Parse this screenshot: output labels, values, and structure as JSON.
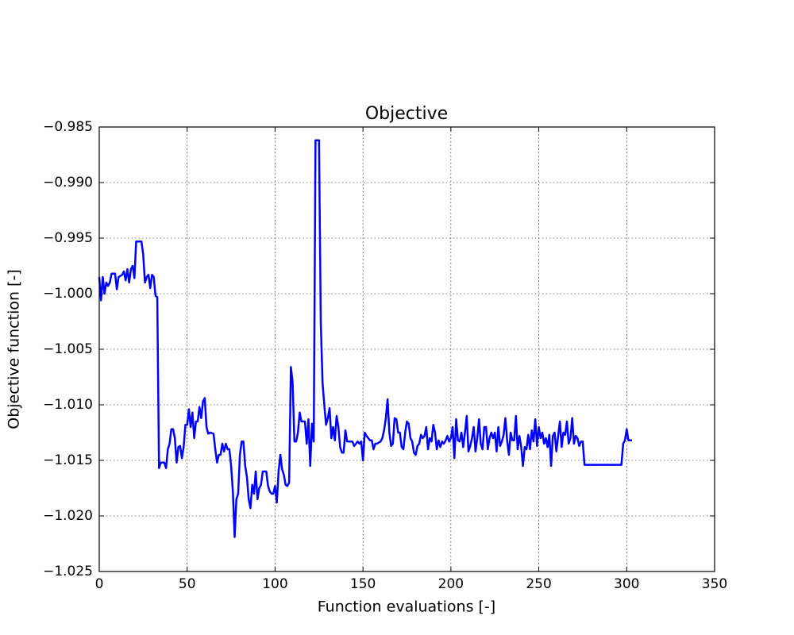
{
  "chart_data": {
    "type": "line",
    "title": "Objective",
    "x_label": "Function evaluations [-]",
    "y_label": "Objective function [-]",
    "xlim": [
      0,
      350
    ],
    "xticks": [
      0,
      50,
      100,
      150,
      200,
      250,
      300,
      350
    ],
    "ylim": [
      -1.025,
      -0.985
    ],
    "yticks": [
      {
        "value": -1.025,
        "label": "−1.025"
      },
      {
        "value": -1.02,
        "label": "−1.020"
      },
      {
        "value": -1.015,
        "label": "−1.015"
      },
      {
        "value": -1.01,
        "label": "−1.010"
      },
      {
        "value": -1.005,
        "label": "−1.005"
      },
      {
        "value": -1.0,
        "label": "−1.000"
      },
      {
        "value": -0.995,
        "label": "−0.995"
      },
      {
        "value": -0.99,
        "label": "−0.990"
      },
      {
        "value": -0.985,
        "label": "−0.985"
      }
    ],
    "grid": true,
    "series": [
      {
        "color": "#0000ff",
        "x": [
          0,
          1,
          2,
          3,
          4,
          5,
          6,
          7,
          9,
          10,
          11,
          13,
          14,
          15,
          16,
          17,
          18,
          19,
          20,
          21,
          24,
          25,
          26,
          27,
          28,
          29,
          30,
          31,
          32,
          33,
          34,
          35,
          37,
          38,
          39,
          40,
          41,
          42,
          43,
          44,
          45,
          46,
          47,
          48,
          49,
          50,
          51,
          52,
          53,
          54,
          55,
          56,
          57,
          58,
          59,
          60,
          61,
          62,
          63,
          65,
          66,
          67,
          68,
          69,
          70,
          71,
          72,
          73,
          74,
          75,
          76,
          77,
          78,
          79,
          80,
          81,
          82,
          83,
          84,
          85,
          86,
          87,
          88,
          89,
          90,
          91,
          92,
          93,
          95,
          96,
          97,
          98,
          99,
          100,
          101,
          102,
          103,
          104,
          105,
          106,
          107,
          108,
          109,
          110,
          111,
          112,
          113,
          114,
          115,
          116,
          117,
          118,
          119,
          120,
          121,
          122,
          123,
          125,
          126,
          127,
          128,
          129,
          130,
          131,
          132,
          133,
          134,
          135,
          136,
          137,
          138,
          139,
          140,
          141,
          142,
          144,
          145,
          146,
          147,
          148,
          149,
          150,
          151,
          152,
          153,
          154,
          155,
          156,
          157,
          158,
          160,
          161,
          162,
          163,
          164,
          165,
          166,
          167,
          168,
          169,
          170,
          171,
          172,
          173,
          174,
          175,
          176,
          177,
          178,
          179,
          180,
          181,
          182,
          183,
          184,
          185,
          186,
          187,
          188,
          189,
          190,
          191,
          192,
          193,
          194,
          195,
          196,
          197,
          198,
          199,
          200,
          201,
          202,
          203,
          204,
          205,
          206,
          207,
          208,
          209,
          210,
          211,
          212,
          213,
          214,
          215,
          216,
          217,
          218,
          219,
          220,
          221,
          222,
          223,
          224,
          225,
          226,
          227,
          228,
          229,
          230,
          231,
          232,
          233,
          234,
          235,
          236,
          237,
          238,
          239,
          240,
          241,
          242,
          243,
          244,
          245,
          246,
          247,
          248,
          249,
          250,
          251,
          252,
          253,
          254,
          255,
          256,
          257,
          258,
          259,
          260,
          261,
          262,
          263,
          264,
          265,
          266,
          267,
          268,
          269,
          270,
          271,
          272,
          273,
          274,
          275,
          276,
          297,
          298,
          299,
          300,
          301,
          303
        ],
        "values": [
          -0.9985,
          -1.0006,
          -0.9985,
          -1.0,
          -0.999,
          -0.9993,
          -0.999,
          -0.9982,
          -0.9982,
          -0.9996,
          -0.9985,
          -0.9983,
          -0.998,
          -0.9988,
          -0.9978,
          -0.999,
          -0.9978,
          -0.9975,
          -0.9986,
          -0.9953,
          -0.9953,
          -0.9965,
          -0.999,
          -0.9985,
          -0.9983,
          -0.9995,
          -0.9983,
          -0.9985,
          -1.0002,
          -1.0003,
          -1.0157,
          -1.0152,
          -1.0152,
          -1.0157,
          -1.014,
          -1.0135,
          -1.0122,
          -1.0122,
          -1.013,
          -1.0152,
          -1.0138,
          -1.0137,
          -1.0148,
          -1.0138,
          -1.0118,
          -1.0118,
          -1.0104,
          -1.012,
          -1.0107,
          -1.013,
          -1.0115,
          -1.0115,
          -1.0102,
          -1.0112,
          -1.0097,
          -1.0094,
          -1.012,
          -1.0126,
          -1.0125,
          -1.0126,
          -1.014,
          -1.0152,
          -1.0145,
          -1.0145,
          -1.0135,
          -1.0142,
          -1.0135,
          -1.014,
          -1.014,
          -1.0155,
          -1.0178,
          -1.0219,
          -1.0185,
          -1.018,
          -1.0145,
          -1.0133,
          -1.0133,
          -1.0155,
          -1.0165,
          -1.0185,
          -1.0193,
          -1.0172,
          -1.018,
          -1.016,
          -1.0185,
          -1.0175,
          -1.0172,
          -1.016,
          -1.016,
          -1.0173,
          -1.0178,
          -1.018,
          -1.018,
          -1.0173,
          -1.0188,
          -1.016,
          -1.0145,
          -1.0158,
          -1.0163,
          -1.0172,
          -1.0173,
          -1.017,
          -1.0066,
          -1.008,
          -1.0133,
          -1.0133,
          -1.0125,
          -1.0107,
          -1.0115,
          -1.0115,
          -1.0115,
          -1.0135,
          -1.0113,
          -1.0155,
          -1.0117,
          -1.0133,
          -0.9862,
          -0.9862,
          -1.0025,
          -1.008,
          -1.01,
          -1.0118,
          -1.0112,
          -1.0103,
          -1.013,
          -1.012,
          -1.0132,
          -1.011,
          -1.012,
          -1.0138,
          -1.0143,
          -1.0143,
          -1.0123,
          -1.0133,
          -1.0133,
          -1.0133,
          -1.0137,
          -1.0135,
          -1.0133,
          -1.0135,
          -1.0133,
          -1.015,
          -1.0125,
          -1.0128,
          -1.013,
          -1.0132,
          -1.0132,
          -1.014,
          -1.0135,
          -1.0135,
          -1.0133,
          -1.013,
          -1.0123,
          -1.0112,
          -1.0095,
          -1.0125,
          -1.0137,
          -1.0135,
          -1.0112,
          -1.0113,
          -1.0125,
          -1.0125,
          -1.0138,
          -1.014,
          -1.0125,
          -1.0115,
          -1.0117,
          -1.013,
          -1.0133,
          -1.0143,
          -1.0145,
          -1.0137,
          -1.0135,
          -1.0127,
          -1.013,
          -1.0128,
          -1.012,
          -1.014,
          -1.013,
          -1.0133,
          -1.0118,
          -1.0125,
          -1.014,
          -1.0132,
          -1.0138,
          -1.0133,
          -1.0135,
          -1.0132,
          -1.0128,
          -1.0133,
          -1.013,
          -1.012,
          -1.0148,
          -1.0113,
          -1.0132,
          -1.0133,
          -1.0125,
          -1.0138,
          -1.0125,
          -1.011,
          -1.0142,
          -1.0137,
          -1.013,
          -1.012,
          -1.0142,
          -1.013,
          -1.0113,
          -1.0135,
          -1.014,
          -1.012,
          -1.012,
          -1.014,
          -1.013,
          -1.0125,
          -1.013,
          -1.0125,
          -1.0142,
          -1.012,
          -1.0137,
          -1.0133,
          -1.0127,
          -1.0112,
          -1.0132,
          -1.0145,
          -1.0125,
          -1.0132,
          -1.0132,
          -1.011,
          -1.014,
          -1.0128,
          -1.0138,
          -1.0155,
          -1.0138,
          -1.014,
          -1.0127,
          -1.014,
          -1.0123,
          -1.0133,
          -1.0113,
          -1.0137,
          -1.012,
          -1.013,
          -1.0125,
          -1.0135,
          -1.013,
          -1.0138,
          -1.0127,
          -1.0155,
          -1.0128,
          -1.0125,
          -1.0142,
          -1.0128,
          -1.0115,
          -1.0138,
          -1.0125,
          -1.0127,
          -1.0115,
          -1.0135,
          -1.013,
          -1.0112,
          -1.0135,
          -1.0128,
          -1.013,
          -1.0137,
          -1.0133,
          -1.0133,
          -1.0154,
          -1.0154,
          -1.0135,
          -1.0132,
          -1.0122,
          -1.0132,
          -1.0132
        ]
      }
    ]
  }
}
